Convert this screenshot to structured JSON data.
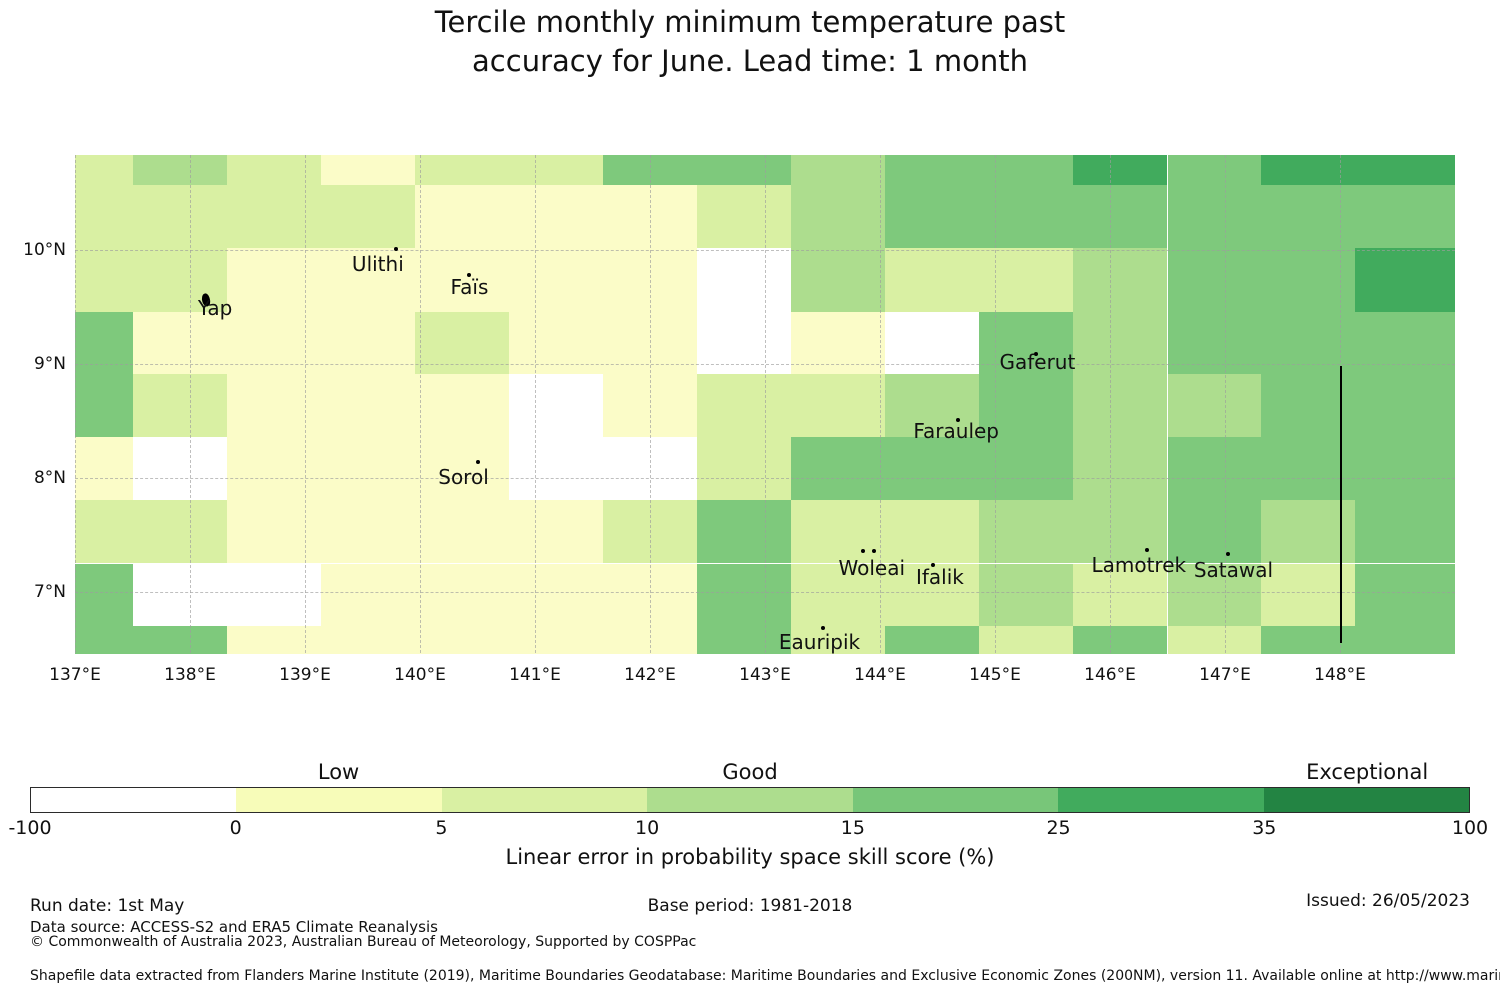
{
  "title": {
    "line1": "Tercile monthly minimum temperature past",
    "line2": "accuracy for June. Lead time: 1 month"
  },
  "chart_data": {
    "type": "heatmap",
    "title": "Tercile monthly minimum temperature past accuracy for June. Lead time: 1 month",
    "grid": "on",
    "map_bounds": {
      "lon_min": 137.0,
      "lon_max": 149.0,
      "lat_min": 6.46,
      "lat_max": 10.83
    },
    "x_ticks": [
      {
        "label": "137°E",
        "lon": 137
      },
      {
        "label": "138°E",
        "lon": 138
      },
      {
        "label": "139°E",
        "lon": 139
      },
      {
        "label": "140°E",
        "lon": 140
      },
      {
        "label": "141°E",
        "lon": 141
      },
      {
        "label": "142°E",
        "lon": 142
      },
      {
        "label": "143°E",
        "lon": 143
      },
      {
        "label": "144°E",
        "lon": 144
      },
      {
        "label": "145°E",
        "lon": 145
      },
      {
        "label": "146°E",
        "lon": 146
      },
      {
        "label": "147°E",
        "lon": 147
      },
      {
        "label": "148°E",
        "lon": 148
      }
    ],
    "y_ticks": [
      {
        "label": "10°N",
        "lat": 10
      },
      {
        "label": "9°N",
        "lat": 9
      },
      {
        "label": "8°N",
        "lat": 8
      },
      {
        "label": "7°N",
        "lat": 7
      }
    ],
    "palette": {
      "W": "#ffffff",
      "Y1": "#fbfcc8",
      "Y2": "#d9f0a3",
      "G1": "#addd8e",
      "G2": "#7ec97c",
      "G3": "#41ab5d",
      "G4": "#238443"
    },
    "value_bins": {
      "W": "-100 to 0",
      "Y1": "0 to 5",
      "Y2": "5 to 10",
      "G1": "10 to 15",
      "G2": "15 to 25",
      "G3": "25 to 35",
      "G4": "35 to 100"
    },
    "lon_edges": [
      137.0,
      137.5,
      138.32,
      139.14,
      139.96,
      140.77,
      141.59,
      142.41,
      143.23,
      144.04,
      144.86,
      145.68,
      146.5,
      147.31,
      148.13,
      149.0
    ],
    "lat_edges": [
      10.83,
      10.57,
      10.02,
      9.46,
      8.91,
      8.36,
      7.81,
      7.25,
      6.7,
      6.46
    ],
    "cells": [
      [
        "Y2",
        "G1",
        "Y2",
        "Y1",
        "Y2",
        "Y2",
        "G2",
        "G2",
        "G1",
        "G2",
        "G2",
        "G3",
        "G2",
        "G3",
        "G3"
      ],
      [
        "Y2",
        "Y2",
        "Y2",
        "Y2",
        "Y1",
        "Y1",
        "Y1",
        "Y2",
        "G1",
        "G2",
        "G2",
        "G2",
        "G2",
        "G2",
        "G2"
      ],
      [
        "Y2",
        "Y2",
        "Y1",
        "Y1",
        "Y1",
        "Y1",
        "Y1",
        "W",
        "G1",
        "Y2",
        "Y2",
        "G1",
        "G2",
        "G2",
        "G3"
      ],
      [
        "G2",
        "Y1",
        "Y1",
        "Y1",
        "Y2",
        "Y1",
        "Y1",
        "W",
        "Y1",
        "W",
        "G2",
        "G1",
        "G2",
        "G2",
        "G2"
      ],
      [
        "G2",
        "Y2",
        "Y1",
        "Y1",
        "Y1",
        "W",
        "Y1",
        "Y2",
        "Y2",
        "G1",
        "G2",
        "G1",
        "G1",
        "G2",
        "G2"
      ],
      [
        "Y1",
        "W",
        "Y1",
        "Y1",
        "Y1",
        "W",
        "W",
        "Y2",
        "G2",
        "G2",
        "G2",
        "G1",
        "G2",
        "G2",
        "G2"
      ],
      [
        "Y2",
        "Y2",
        "Y1",
        "Y1",
        "Y1",
        "Y1",
        "Y2",
        "G2",
        "Y2",
        "Y2",
        "G1",
        "G1",
        "G2",
        "G1",
        "G2"
      ],
      [
        "G2",
        "W",
        "W",
        "Y1",
        "Y1",
        "Y1",
        "Y1",
        "G2",
        "Y2",
        "Y2",
        "G1",
        "Y2",
        "G1",
        "Y2",
        "G2"
      ],
      [
        "G2",
        "G2",
        "Y1",
        "Y1",
        "Y1",
        "Y1",
        "Y1",
        "G2",
        "Y2",
        "G2",
        "Y2",
        "G2",
        "Y2",
        "G2",
        "G2"
      ]
    ],
    "islands": [
      {
        "name": "Yap",
        "lon": 138.14,
        "lat": 9.56,
        "marker": "shape"
      },
      {
        "name": "Ulithi",
        "lon": 139.79,
        "lat": 10.01,
        "marker": "dot"
      },
      {
        "name": "Faïs",
        "lon": 140.43,
        "lat": 9.78,
        "marker": "dot"
      },
      {
        "name": "Sorol",
        "lon": 140.5,
        "lat": 8.14,
        "marker": "dot"
      },
      {
        "name": "Gaferut",
        "lon": 145.36,
        "lat": 9.09,
        "marker": "dot"
      },
      {
        "name": "Faraulep",
        "lon": 144.68,
        "lat": 8.51,
        "marker": "dot"
      },
      {
        "name": "Woleai",
        "lon": 143.85,
        "lat": 7.36,
        "marker": "dot",
        "extra_dot_lon": 143.95
      },
      {
        "name": "Ifalik",
        "lon": 144.46,
        "lat": 7.24,
        "marker": "dot"
      },
      {
        "name": "Eauripik",
        "lon": 143.5,
        "lat": 6.68,
        "marker": "dot"
      },
      {
        "name": "Lamotrek",
        "lon": 146.32,
        "lat": 7.37,
        "marker": "dot"
      },
      {
        "name": "Satawal",
        "lon": 147.03,
        "lat": 7.33,
        "marker": "dot"
      }
    ],
    "boundary_line": {
      "lon": 148.0,
      "lat_from": 6.55,
      "lat_to": 8.98
    },
    "colorbar": {
      "label": "Linear error in probability space skill score (%)",
      "segment_colors": [
        "#ffffff",
        "#f7fcb9",
        "#d9f0a3",
        "#addd8e",
        "#78c679",
        "#41ab5d",
        "#238443"
      ],
      "tick_labels": [
        "-100",
        "0",
        "5",
        "10",
        "15",
        "25",
        "35",
        "100"
      ],
      "categories": [
        {
          "label": "Low",
          "segment": 1
        },
        {
          "label": "Good",
          "segment": 3
        },
        {
          "label": "Exceptional",
          "segment": 6
        }
      ]
    }
  },
  "footer": {
    "run_date": "Run date: 1st May",
    "base_period": "Base period: 1981-2018",
    "issued": "Issued: 26/05/2023",
    "data_source": "Data source: ACCESS-S2 and ERA5 Climate Reanalysis",
    "copyright": "© Commonwealth of Australia 2023, Australian Bureau of Meteorology, Supported by COSPPac",
    "shapefile": "Shapefile data extracted from Flanders Marine Institute (2019), Maritime Boundaries Geodatabase: Maritime Boundaries and Exclusive Economic Zones (200NM), version 11. Available online at http://www.marineregions.org/."
  }
}
